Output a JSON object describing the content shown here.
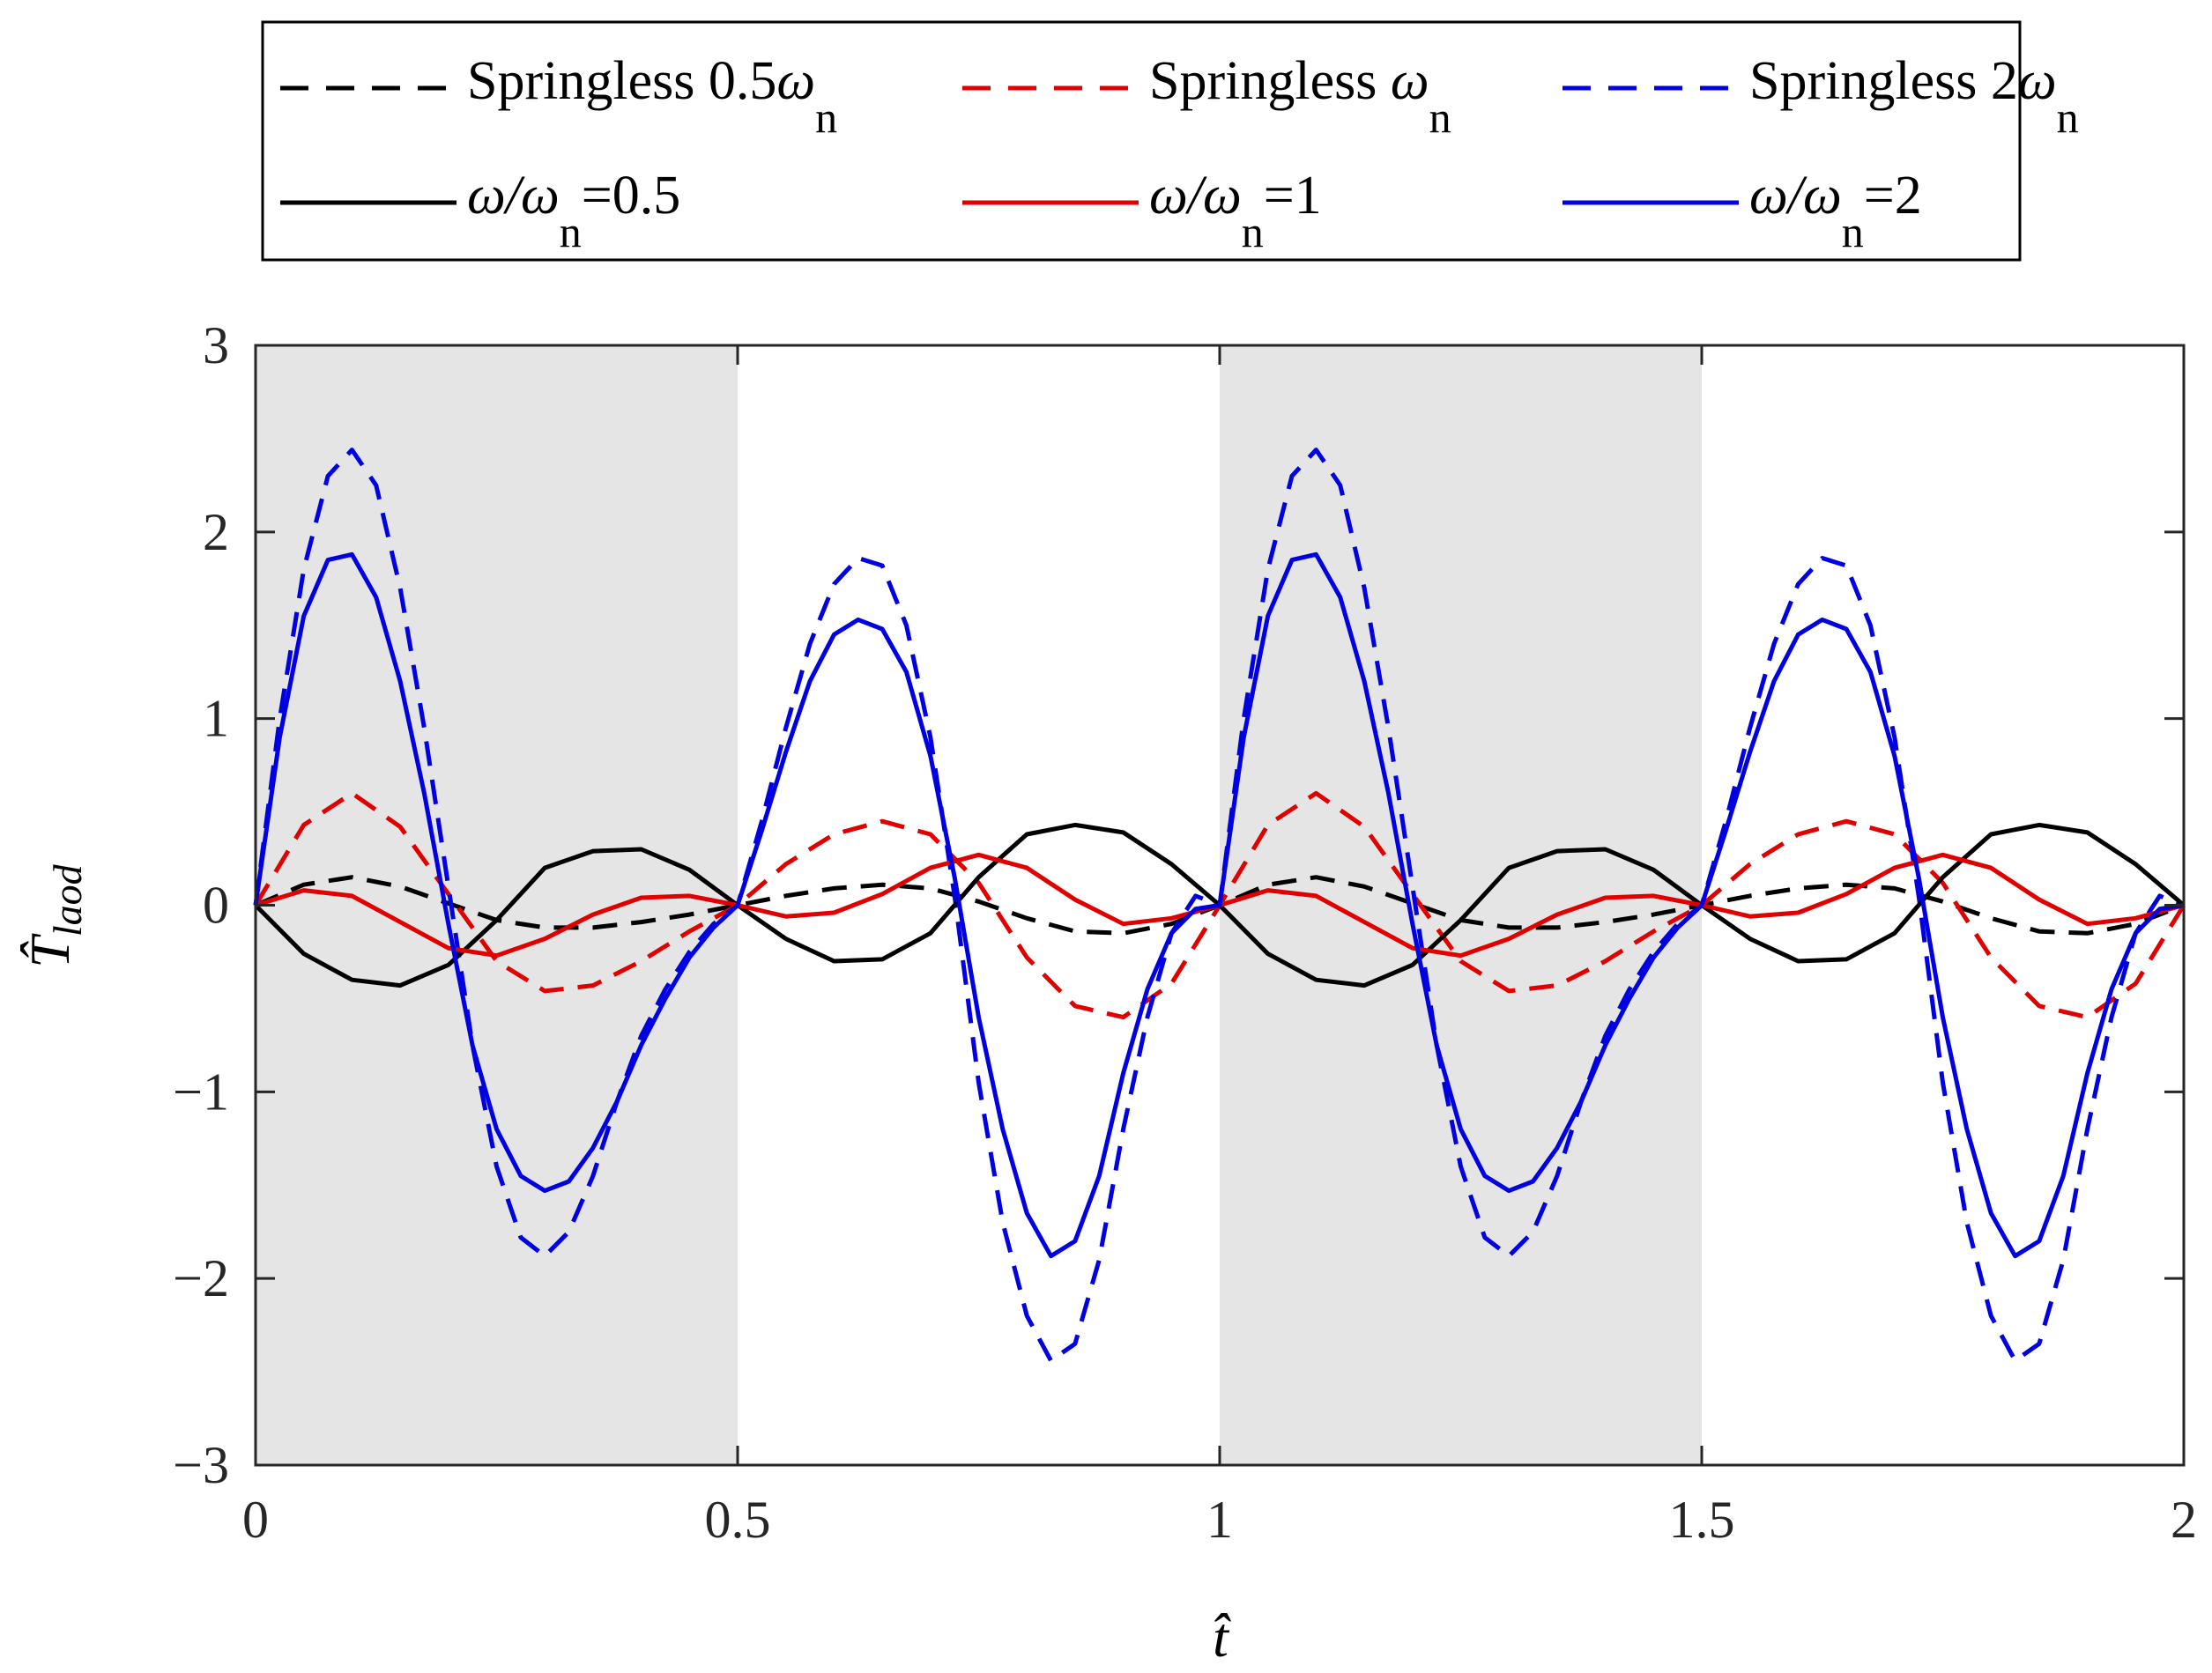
{
  "chart_data": {
    "type": "line",
    "title": "",
    "xlabel": "t̂",
    "ylabel": {
      "main": "T̂",
      "sub": "laod"
    },
    "xlim": [
      0,
      2
    ],
    "ylim": [
      -3,
      3
    ],
    "xticks": [
      0,
      0.5,
      1,
      1.5,
      2
    ],
    "yticks": [
      -3,
      -2,
      -1,
      0,
      1,
      2,
      3
    ],
    "xtick_labels": [
      "0",
      "0.5",
      "1",
      "1.5",
      "2"
    ],
    "ytick_labels": [
      "−3",
      "−2",
      "−1",
      "0",
      "1",
      "2",
      "3"
    ],
    "shaded_regions": [
      [
        0,
        0.5
      ],
      [
        1,
        1.5
      ]
    ],
    "shade_color": "#e5e5e5",
    "grid": false,
    "legend_position": "top",
    "series": [
      {
        "name": "Springless 0.5ωn",
        "label_main": "Springless 0.5ω",
        "label_sub": "n",
        "color": "#000000",
        "style": "dashed",
        "x": [
          0,
          0.05,
          0.1,
          0.15,
          0.2,
          0.25,
          0.3,
          0.35,
          0.4,
          0.45,
          0.5,
          0.55,
          0.6,
          0.65,
          0.7,
          0.75,
          0.8,
          0.85,
          0.9,
          0.95,
          1.0,
          1.05,
          1.1,
          1.15,
          1.2,
          1.25,
          1.3,
          1.35,
          1.4,
          1.45,
          1.5,
          1.55,
          1.6,
          1.65,
          1.7,
          1.75,
          1.8,
          1.85,
          1.9,
          1.95,
          2.0
        ],
        "y": [
          0,
          0.11,
          0.15,
          0.1,
          0.01,
          -0.08,
          -0.12,
          -0.12,
          -0.09,
          -0.05,
          0,
          0.05,
          0.09,
          0.11,
          0.09,
          0.02,
          -0.07,
          -0.14,
          -0.15,
          -0.1,
          0,
          0.11,
          0.15,
          0.1,
          0.01,
          -0.08,
          -0.12,
          -0.12,
          -0.09,
          -0.05,
          0,
          0.05,
          0.09,
          0.11,
          0.09,
          0.02,
          -0.07,
          -0.14,
          -0.15,
          -0.1,
          0
        ]
      },
      {
        "name": "Springless ωn",
        "label_main": "Springless ω",
        "label_sub": "n",
        "color": "#e00000",
        "style": "dashed",
        "x": [
          0,
          0.05,
          0.1,
          0.15,
          0.2,
          0.25,
          0.3,
          0.35,
          0.4,
          0.45,
          0.5,
          0.55,
          0.6,
          0.65,
          0.7,
          0.75,
          0.8,
          0.85,
          0.9,
          0.95,
          1.0,
          1.05,
          1.1,
          1.15,
          1.2,
          1.25,
          1.3,
          1.35,
          1.4,
          1.45,
          1.5,
          1.55,
          1.6,
          1.65,
          1.7,
          1.75,
          1.8,
          1.85,
          1.9,
          1.95,
          2.0
        ],
        "y": [
          0,
          0.43,
          0.6,
          0.42,
          0.06,
          -0.3,
          -0.46,
          -0.43,
          -0.3,
          -0.14,
          0,
          0.22,
          0.38,
          0.45,
          0.38,
          0.12,
          -0.28,
          -0.54,
          -0.6,
          -0.42,
          0,
          0.43,
          0.6,
          0.42,
          0.06,
          -0.3,
          -0.46,
          -0.43,
          -0.3,
          -0.14,
          0,
          0.22,
          0.38,
          0.45,
          0.38,
          0.12,
          -0.28,
          -0.54,
          -0.6,
          -0.42,
          0
        ]
      },
      {
        "name": "Springless 2ωn",
        "label_main": "Springless 2ω",
        "label_sub": "n",
        "color": "#0000e0",
        "style": "dashed",
        "x": [
          0,
          0.025,
          0.05,
          0.075,
          0.1,
          0.125,
          0.15,
          0.175,
          0.2,
          0.225,
          0.25,
          0.275,
          0.3,
          0.325,
          0.35,
          0.375,
          0.4,
          0.425,
          0.45,
          0.475,
          0.5,
          0.525,
          0.55,
          0.575,
          0.6,
          0.625,
          0.65,
          0.675,
          0.7,
          0.725,
          0.75,
          0.775,
          0.8,
          0.825,
          0.85,
          0.875,
          0.9,
          0.925,
          0.95,
          0.975,
          1.0,
          1.025,
          1.05,
          1.075,
          1.1,
          1.125,
          1.15,
          1.175,
          1.2,
          1.225,
          1.25,
          1.275,
          1.3,
          1.325,
          1.35,
          1.375,
          1.4,
          1.425,
          1.45,
          1.475,
          1.5,
          1.525,
          1.55,
          1.575,
          1.6,
          1.625,
          1.65,
          1.675,
          1.7,
          1.725,
          1.75,
          1.775,
          1.8,
          1.825,
          1.85,
          1.875,
          1.9,
          1.925,
          1.95,
          1.975,
          2.0
        ],
        "y": [
          0,
          1.0,
          1.8,
          2.3,
          2.44,
          2.25,
          1.7,
          0.95,
          0.1,
          -0.75,
          -1.4,
          -1.78,
          -1.88,
          -1.75,
          -1.45,
          -1.05,
          -0.7,
          -0.45,
          -0.25,
          -0.1,
          0,
          0.45,
          0.95,
          1.4,
          1.72,
          1.86,
          1.82,
          1.5,
          0.9,
          0.05,
          -0.95,
          -1.7,
          -2.2,
          -2.44,
          -2.35,
          -1.9,
          -1.2,
          -0.6,
          -0.15,
          0.05,
          0,
          1.0,
          1.8,
          2.3,
          2.44,
          2.25,
          1.7,
          0.95,
          0.1,
          -0.75,
          -1.4,
          -1.78,
          -1.88,
          -1.75,
          -1.45,
          -1.05,
          -0.7,
          -0.45,
          -0.25,
          -0.1,
          0,
          0.45,
          0.95,
          1.4,
          1.72,
          1.86,
          1.82,
          1.5,
          0.9,
          0.05,
          -0.95,
          -1.7,
          -2.2,
          -2.44,
          -2.35,
          -1.9,
          -1.2,
          -0.6,
          -0.15,
          0.05,
          0
        ]
      },
      {
        "name": "ω/ωn=0.5",
        "label_main": "ω/ω",
        "label_sub": "n",
        "label_tail": "=0.5",
        "color": "#000000",
        "style": "solid",
        "x": [
          0,
          0.05,
          0.1,
          0.15,
          0.2,
          0.25,
          0.3,
          0.35,
          0.4,
          0.45,
          0.5,
          0.55,
          0.6,
          0.65,
          0.7,
          0.75,
          0.8,
          0.85,
          0.9,
          0.95,
          1.0,
          1.05,
          1.1,
          1.15,
          1.2,
          1.25,
          1.3,
          1.35,
          1.4,
          1.45,
          1.5,
          1.55,
          1.6,
          1.65,
          1.7,
          1.75,
          1.8,
          1.85,
          1.9,
          1.95,
          2.0
        ],
        "y": [
          0,
          -0.26,
          -0.4,
          -0.43,
          -0.32,
          -0.08,
          0.2,
          0.29,
          0.3,
          0.19,
          0,
          -0.18,
          -0.3,
          -0.29,
          -0.15,
          0.15,
          0.38,
          0.43,
          0.39,
          0.22,
          0,
          -0.26,
          -0.4,
          -0.43,
          -0.32,
          -0.08,
          0.2,
          0.29,
          0.3,
          0.19,
          0,
          -0.18,
          -0.3,
          -0.29,
          -0.15,
          0.15,
          0.38,
          0.43,
          0.39,
          0.22,
          0
        ]
      },
      {
        "name": "ω/ωn=1",
        "label_main": "ω/ω",
        "label_sub": "n",
        "label_tail": "=1",
        "color": "#e00000",
        "style": "solid",
        "x": [
          0,
          0.05,
          0.1,
          0.15,
          0.2,
          0.25,
          0.3,
          0.35,
          0.4,
          0.45,
          0.5,
          0.55,
          0.6,
          0.65,
          0.7,
          0.75,
          0.8,
          0.85,
          0.9,
          0.95,
          1.0,
          1.05,
          1.1,
          1.15,
          1.2,
          1.25,
          1.3,
          1.35,
          1.4,
          1.45,
          1.5,
          1.55,
          1.6,
          1.65,
          1.7,
          1.75,
          1.8,
          1.85,
          1.9,
          1.95,
          2.0
        ],
        "y": [
          0,
          0.08,
          0.05,
          -0.09,
          -0.23,
          -0.27,
          -0.18,
          -0.05,
          0.04,
          0.05,
          0,
          -0.06,
          -0.04,
          0.06,
          0.2,
          0.27,
          0.2,
          0.03,
          -0.1,
          -0.07,
          0,
          0.08,
          0.05,
          -0.09,
          -0.23,
          -0.27,
          -0.18,
          -0.05,
          0.04,
          0.05,
          0,
          -0.06,
          -0.04,
          0.06,
          0.2,
          0.27,
          0.2,
          0.03,
          -0.1,
          -0.07,
          0
        ]
      },
      {
        "name": "ω/ωn=2",
        "label_main": "ω/ω",
        "label_sub": "n",
        "label_tail": "=2",
        "color": "#0000e0",
        "style": "solid",
        "x": [
          0,
          0.025,
          0.05,
          0.075,
          0.1,
          0.125,
          0.15,
          0.175,
          0.2,
          0.225,
          0.25,
          0.275,
          0.3,
          0.325,
          0.35,
          0.375,
          0.4,
          0.425,
          0.45,
          0.475,
          0.5,
          0.525,
          0.55,
          0.575,
          0.6,
          0.625,
          0.65,
          0.675,
          0.7,
          0.725,
          0.75,
          0.775,
          0.8,
          0.825,
          0.85,
          0.875,
          0.9,
          0.925,
          0.95,
          0.975,
          1.0,
          1.025,
          1.05,
          1.075,
          1.1,
          1.125,
          1.15,
          1.175,
          1.2,
          1.225,
          1.25,
          1.275,
          1.3,
          1.325,
          1.35,
          1.375,
          1.4,
          1.425,
          1.45,
          1.475,
          1.5,
          1.525,
          1.55,
          1.575,
          1.6,
          1.625,
          1.65,
          1.675,
          1.7,
          1.725,
          1.75,
          1.775,
          1.8,
          1.825,
          1.85,
          1.875,
          1.9,
          1.925,
          1.95,
          1.975,
          2.0
        ],
        "y": [
          0,
          0.9,
          1.55,
          1.85,
          1.88,
          1.65,
          1.2,
          0.6,
          -0.1,
          -0.75,
          -1.2,
          -1.45,
          -1.53,
          -1.48,
          -1.3,
          -1.05,
          -0.75,
          -0.5,
          -0.28,
          -0.12,
          0,
          0.4,
          0.82,
          1.2,
          1.45,
          1.53,
          1.48,
          1.25,
          0.8,
          0.15,
          -0.6,
          -1.2,
          -1.65,
          -1.88,
          -1.8,
          -1.45,
          -0.9,
          -0.45,
          -0.15,
          -0.02,
          0,
          0.9,
          1.55,
          1.85,
          1.88,
          1.65,
          1.2,
          0.6,
          -0.1,
          -0.75,
          -1.2,
          -1.45,
          -1.53,
          -1.48,
          -1.3,
          -1.05,
          -0.75,
          -0.5,
          -0.28,
          -0.12,
          0,
          0.4,
          0.82,
          1.2,
          1.45,
          1.53,
          1.48,
          1.25,
          0.8,
          0.15,
          -0.6,
          -1.2,
          -1.65,
          -1.88,
          -1.8,
          -1.45,
          -0.9,
          -0.45,
          -0.15,
          -0.02,
          0
        ]
      }
    ]
  }
}
